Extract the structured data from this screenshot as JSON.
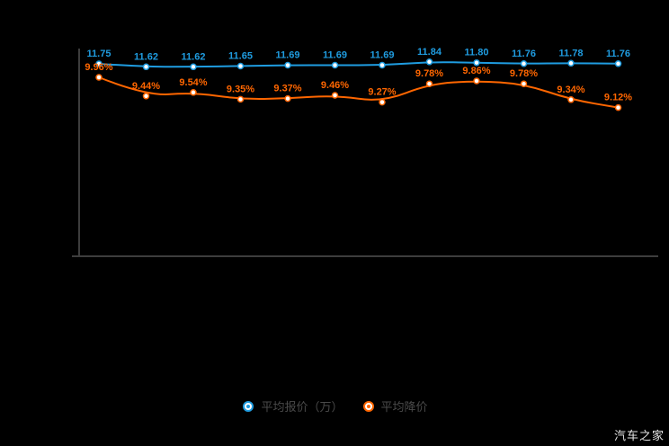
{
  "watermark": {
    "text": "汽车之家"
  },
  "colors": {
    "background": "#000000",
    "axis": "#3d3d3d",
    "series_price": "#1f9ce0",
    "series_discount": "#ff6600",
    "legend_text": "#4a4a4a",
    "watermark_text": "#e6e6e6",
    "marker_fill": "#ffffff"
  },
  "chart_data": {
    "type": "line",
    "title": "",
    "num_points": 12,
    "x_tick_labels": [],
    "grid": false,
    "legend_position": "bottom",
    "series": [
      {
        "name": "平均报价（万）",
        "unit": "万",
        "color": "#1f9ce0",
        "values": [
          11.75,
          11.62,
          11.62,
          11.65,
          11.69,
          11.69,
          11.69,
          11.84,
          11.8,
          11.76,
          11.78,
          11.76
        ],
        "labels": [
          "11.75",
          "11.62",
          "11.62",
          "11.65",
          "11.69",
          "11.69",
          "11.69",
          "11.84",
          "11.80",
          "11.76",
          "11.78",
          "11.76"
        ]
      },
      {
        "name": "平均降价",
        "unit": "%",
        "color": "#ff6600",
        "values": [
          9.96,
          9.44,
          9.54,
          9.35,
          9.37,
          9.46,
          9.27,
          9.78,
          9.86,
          9.78,
          9.34,
          9.12
        ],
        "labels": [
          "9.96%",
          "9.44%",
          "9.54%",
          "9.35%",
          "9.37%",
          "9.46%",
          "9.27%",
          "9.78%",
          "9.86%",
          "9.78%",
          "9.34%",
          "9.12%"
        ]
      }
    ]
  }
}
